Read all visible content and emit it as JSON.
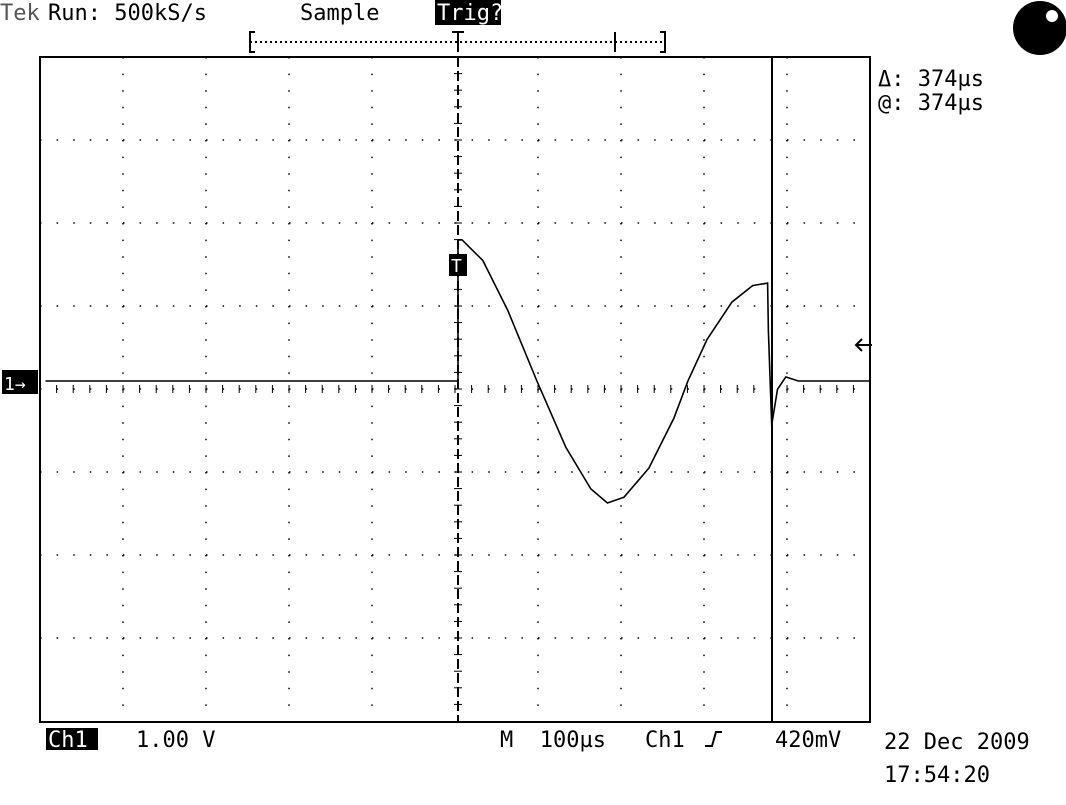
{
  "header": {
    "brand": "Tek",
    "status": "Run: 500kS/s",
    "mode": "Sample",
    "trigger_state": "Trig?"
  },
  "cursor_readout": {
    "delta": "Δ: 374µs",
    "at": "@: 374µs"
  },
  "markers": {
    "channel": "1→",
    "trigger": "T"
  },
  "footer": {
    "channel": "Ch1",
    "scale": "1.00 V",
    "timebase": "M  100µs",
    "trigger_source": "Ch1",
    "trigger_level": "420mV",
    "date": "22 Dec 2009",
    "time": "17:54:20"
  },
  "trace": {
    "x": [
      -497,
      0,
      0,
      5,
      30,
      60,
      95,
      130,
      160,
      180,
      200,
      230,
      260,
      277,
      300,
      330,
      355,
      373,
      374,
      378,
      385,
      395,
      410,
      496
    ],
    "values": [
      0,
      0,
      1.7,
      1.7,
      1.45,
      0.85,
      0,
      -0.8,
      -1.3,
      -1.47,
      -1.4,
      -1.05,
      -0.45,
      0,
      0.5,
      0.95,
      1.15,
      1.18,
      0.6,
      -0.53,
      -0.1,
      0.05,
      0,
      0
    ]
  }
}
